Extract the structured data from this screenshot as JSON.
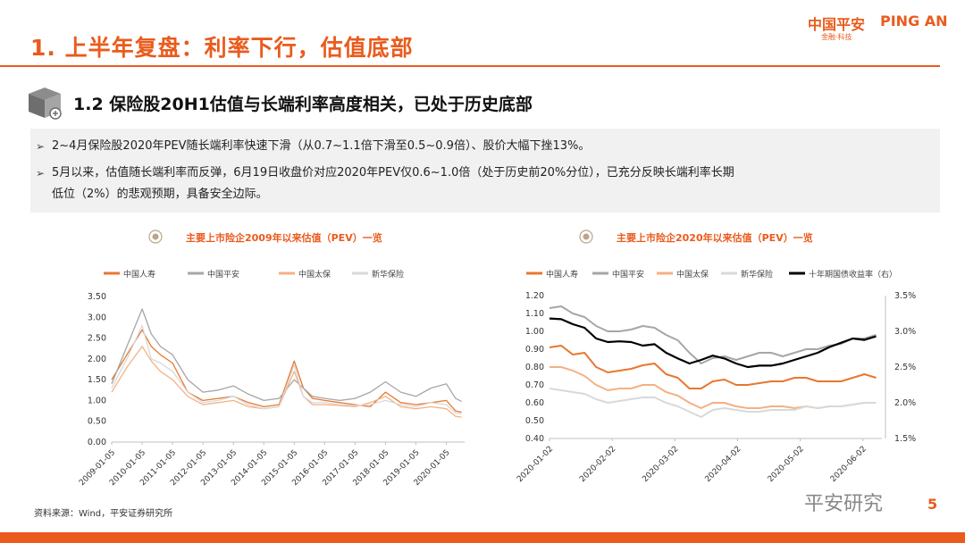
{
  "header": {
    "title": "1. 上半年复盘：利率下行，估值底部",
    "brand_cn": "中国平安",
    "brand_en": "PING AN",
    "brand_sub": "金融·科技"
  },
  "section": {
    "subtitle": "1.2 保险股20H1估值与长端利率高度相关，已处于历史底部"
  },
  "bullets": [
    "2~4月保险股2020年PEV随长端利率快速下滑（从0.7~1.1倍下滑至0.5~0.9倍）、股价大幅下挫13%。",
    "5月以来，估值随长端利率而反弹，6月19日收盘价对应2020年PEV仅0.6~1.0倍（处于历史前20%分位），已充分反映长端利率长期",
    "低位（2%）的悲观预期，具备安全边际。"
  ],
  "footer": {
    "source": "资料来源：Wind，平安证券研究所",
    "watermark": "平安研究",
    "page": "5"
  },
  "chart_data": [
    {
      "type": "line",
      "title": "主要上市险企2009年以来估值（PEV）一览",
      "x_ticks": [
        "2009-01-05",
        "2010-01-05",
        "2011-01-05",
        "2012-01-05",
        "2013-01-05",
        "2014-01-05",
        "2015-01-05",
        "2016-01-05",
        "2017-01-05",
        "2018-01-05",
        "2019-01-05",
        "2020-01-05"
      ],
      "x": [
        2009.0,
        2009.5,
        2010.0,
        2010.3,
        2010.6,
        2011.0,
        2011.5,
        2012.0,
        2012.5,
        2013.0,
        2013.5,
        2014.0,
        2014.5,
        2015.0,
        2015.3,
        2015.6,
        2016.0,
        2016.5,
        2017.0,
        2017.5,
        2018.0,
        2018.5,
        2019.0,
        2019.5,
        2020.0,
        2020.3,
        2020.5
      ],
      "ylim": [
        0,
        3.5
      ],
      "y_ticks": [
        "0.00",
        "0.50",
        "1.00",
        "1.50",
        "2.00",
        "2.50",
        "3.00",
        "3.50"
      ],
      "series": [
        {
          "name": "中国人寿",
          "color": "#e8772e",
          "values": [
            1.5,
            2.1,
            2.7,
            2.3,
            2.1,
            1.9,
            1.2,
            1.0,
            1.05,
            1.1,
            0.95,
            0.85,
            0.9,
            1.95,
            1.3,
            1.05,
            1.0,
            0.95,
            0.9,
            0.85,
            1.2,
            0.95,
            0.9,
            0.95,
            1.0,
            0.75,
            0.72
          ]
        },
        {
          "name": "中国平安",
          "color": "#a6a6a6",
          "values": [
            1.4,
            2.3,
            3.2,
            2.6,
            2.3,
            2.1,
            1.5,
            1.2,
            1.25,
            1.35,
            1.15,
            1.0,
            1.05,
            1.5,
            1.3,
            1.1,
            1.05,
            1.0,
            1.05,
            1.2,
            1.45,
            1.2,
            1.1,
            1.3,
            1.4,
            1.05,
            0.98
          ]
        },
        {
          "name": "中国太保",
          "color": "#f4b183",
          "values": [
            1.2,
            1.8,
            2.3,
            1.95,
            1.7,
            1.5,
            1.1,
            0.9,
            0.95,
            1.0,
            0.85,
            0.8,
            0.85,
            1.7,
            1.1,
            0.9,
            0.9,
            0.88,
            0.85,
            0.95,
            1.1,
            0.85,
            0.8,
            0.85,
            0.8,
            0.62,
            0.6
          ]
        },
        {
          "name": "新华保险",
          "color": "#d9d9d9",
          "values": [
            1.3,
            2.0,
            2.8,
            2.0,
            1.9,
            1.7,
            1.2,
            0.95,
            1.0,
            1.1,
            0.9,
            0.8,
            0.85,
            1.85,
            1.1,
            0.95,
            0.95,
            0.9,
            0.88,
            0.9,
            1.0,
            0.9,
            0.85,
            0.95,
            0.9,
            0.7,
            0.68
          ]
        }
      ]
    },
    {
      "type": "line",
      "title": "主要上市险企2020年以来估值（PEV）一览",
      "x_ticks": [
        "2020-01-02",
        "2020-02-02",
        "2020-03-02",
        "2020-04-02",
        "2020-05-02",
        "2020-06-02"
      ],
      "x_index": [
        0,
        4,
        8,
        12,
        16,
        20,
        24,
        28,
        32,
        36,
        40,
        44,
        48,
        52,
        56,
        60,
        64,
        68,
        72,
        76,
        80,
        84,
        88,
        92,
        96,
        100,
        104,
        108,
        112
      ],
      "ylim": [
        0.4,
        1.2
      ],
      "y_ticks": [
        "0.40",
        "0.50",
        "0.60",
        "0.70",
        "0.80",
        "0.90",
        "1.00",
        "1.10",
        "1.20"
      ],
      "y2lim": [
        1.5,
        3.5
      ],
      "y2_ticks": [
        "1.5%",
        "2.0%",
        "2.5%",
        "3.0%",
        "3.5%"
      ],
      "series": [
        {
          "name": "中国人寿",
          "color": "#e8772e",
          "values": [
            0.91,
            0.92,
            0.87,
            0.88,
            0.8,
            0.77,
            0.78,
            0.79,
            0.81,
            0.82,
            0.76,
            0.74,
            0.68,
            0.68,
            0.72,
            0.73,
            0.7,
            0.7,
            0.71,
            0.72,
            0.72,
            0.74,
            0.74,
            0.72,
            0.72,
            0.72,
            0.74,
            0.76,
            0.74
          ]
        },
        {
          "name": "中国平安",
          "color": "#a6a6a6",
          "values": [
            1.13,
            1.14,
            1.1,
            1.08,
            1.03,
            1.0,
            1.0,
            1.01,
            1.03,
            1.02,
            0.98,
            0.95,
            0.88,
            0.82,
            0.85,
            0.86,
            0.84,
            0.86,
            0.88,
            0.88,
            0.86,
            0.88,
            0.9,
            0.9,
            0.92,
            0.93,
            0.96,
            0.96,
            0.98
          ]
        },
        {
          "name": "中国太保",
          "color": "#f4b183",
          "values": [
            0.8,
            0.8,
            0.78,
            0.75,
            0.7,
            0.67,
            0.68,
            0.68,
            0.7,
            0.7,
            0.66,
            0.64,
            0.6,
            0.57,
            0.6,
            0.6,
            0.58,
            0.57,
            0.57,
            0.58,
            0.58,
            0.57,
            0.58,
            0.57,
            0.58,
            0.58,
            0.59,
            0.6,
            0.6
          ]
        },
        {
          "name": "新华保险",
          "color": "#d9d9d9",
          "values": [
            0.68,
            0.67,
            0.66,
            0.65,
            0.62,
            0.6,
            0.61,
            0.62,
            0.63,
            0.63,
            0.6,
            0.58,
            0.55,
            0.52,
            0.56,
            0.57,
            0.56,
            0.55,
            0.55,
            0.56,
            0.56,
            0.56,
            0.58,
            0.57,
            0.58,
            0.58,
            0.59,
            0.6,
            0.6
          ]
        },
        {
          "name": "十年期国债收益率（右）",
          "color": "#000000",
          "axis": "right",
          "values": [
            3.18,
            3.17,
            3.1,
            3.05,
            2.9,
            2.85,
            2.86,
            2.85,
            2.8,
            2.82,
            2.7,
            2.62,
            2.55,
            2.6,
            2.66,
            2.62,
            2.55,
            2.5,
            2.52,
            2.52,
            2.55,
            2.6,
            2.65,
            2.7,
            2.78,
            2.84,
            2.9,
            2.88,
            2.93
          ]
        }
      ]
    }
  ]
}
